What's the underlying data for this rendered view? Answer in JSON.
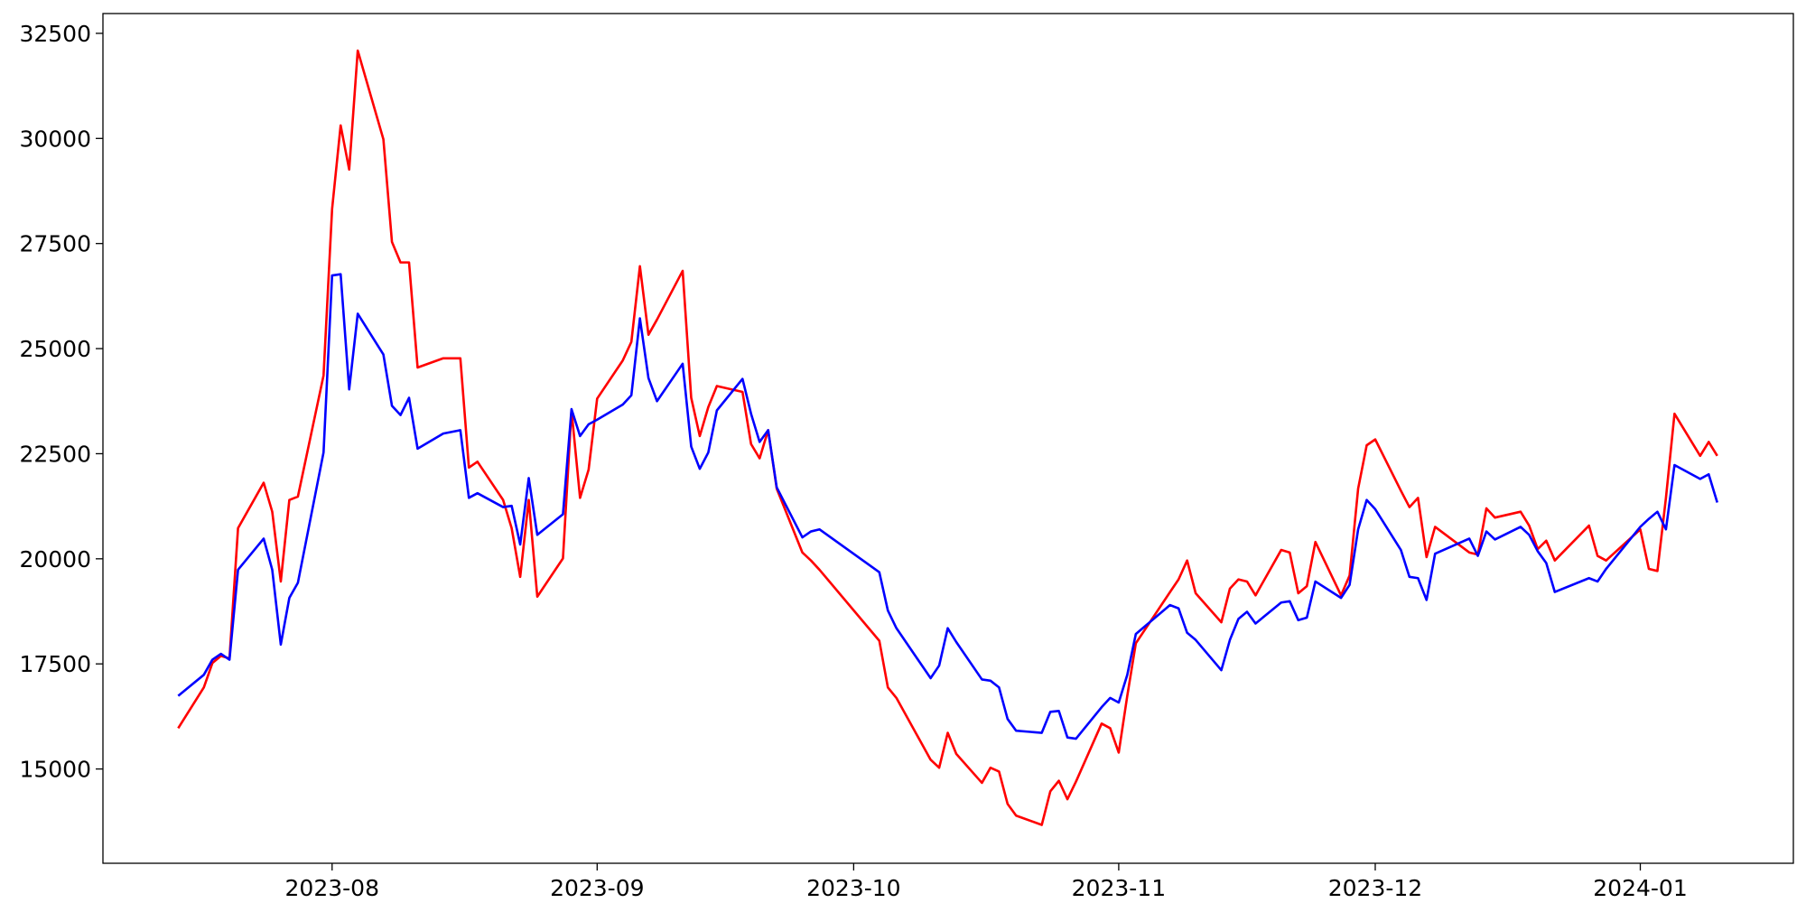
{
  "chart_data": {
    "type": "line",
    "x": [
      19552,
      19555,
      19556,
      19557,
      19558,
      19559,
      19562,
      19563,
      19564,
      19565,
      19566,
      19569,
      19570,
      19571,
      19572,
      19573,
      19576,
      19577,
      19578,
      19579,
      19580,
      19583,
      19585,
      19586,
      19587,
      19590,
      19591,
      19592,
      19593,
      19594,
      19597,
      19598,
      19599,
      19600,
      19601,
      19604,
      19605,
      19606,
      19607,
      19608,
      19611,
      19612,
      19613,
      19614,
      19615,
      19618,
      19619,
      19620,
      19621,
      19622,
      19625,
      19626,
      19627,
      19634,
      19635,
      19636,
      19640,
      19641,
      19642,
      19643,
      19646,
      19647,
      19648,
      19649,
      19650,
      19653,
      19654,
      19655,
      19656,
      19657,
      19660,
      19661,
      19662,
      19663,
      19664,
      19668,
      19669,
      19670,
      19671,
      19674,
      19675,
      19676,
      19677,
      19678,
      19681,
      19682,
      19683,
      19684,
      19685,
      19688,
      19689,
      19690,
      19691,
      19692,
      19695,
      19696,
      19697,
      19698,
      19699,
      19703,
      19704,
      19705,
      19706,
      19709,
      19710,
      19711,
      19712,
      19713,
      19717,
      19718,
      19719,
      19723,
      19724,
      19725,
      19726,
      19727,
      19730,
      19731,
      19732
    ],
    "series": [
      {
        "color": "red",
        "values": [
          15970,
          16940,
          17520,
          17690,
          17630,
          20730,
          21810,
          21120,
          19460,
          21400,
          21480,
          24360,
          28320,
          30310,
          29260,
          32090,
          29980,
          27540,
          27050,
          27050,
          24550,
          24770,
          24770,
          22170,
          22310,
          21400,
          20730,
          19570,
          21400,
          19100,
          20010,
          23530,
          21450,
          22120,
          23810,
          24720,
          25160,
          26960,
          25330,
          25690,
          26850,
          23830,
          22920,
          23610,
          24110,
          23970,
          22730,
          22390,
          23060,
          21670,
          20150,
          19960,
          19740,
          18050,
          16940,
          16690,
          15220,
          15030,
          15860,
          15360,
          14670,
          15030,
          14940,
          14170,
          13890,
          13670,
          14470,
          14720,
          14280,
          14700,
          16080,
          15970,
          15390,
          16740,
          17990,
          19210,
          19510,
          19960,
          19180,
          18490,
          19290,
          19510,
          19460,
          19130,
          20210,
          20150,
          19180,
          19350,
          20400,
          19130,
          19600,
          21670,
          22700,
          22840,
          21620,
          21230,
          21450,
          20040,
          20760,
          20150,
          20100,
          21200,
          20980,
          21120,
          20790,
          20230,
          20430,
          19960,
          20790,
          20070,
          19960,
          20700,
          19760,
          19710,
          21450,
          23450,
          22450,
          22780,
          22450
        ]
      },
      {
        "color": "blue",
        "values": [
          16740,
          17240,
          17600,
          17740,
          17600,
          19740,
          20480,
          19740,
          17960,
          19070,
          19430,
          22530,
          26740,
          26770,
          24030,
          25830,
          24860,
          23640,
          23420,
          23830,
          22620,
          22980,
          23060,
          21450,
          21560,
          21230,
          21260,
          20340,
          21920,
          20570,
          21060,
          23560,
          22920,
          23200,
          23310,
          23670,
          23890,
          25720,
          24300,
          23750,
          24640,
          22670,
          22140,
          22530,
          23530,
          24280,
          23450,
          22780,
          23060,
          21700,
          20510,
          20650,
          20700,
          19680,
          18770,
          18350,
          17160,
          17460,
          18350,
          18020,
          17130,
          17100,
          16940,
          16190,
          15910,
          15860,
          16360,
          16380,
          15750,
          15720,
          16470,
          16690,
          16580,
          17240,
          18210,
          18900,
          18820,
          18240,
          18070,
          17350,
          18070,
          18570,
          18740,
          18460,
          18960,
          18990,
          18540,
          18600,
          19460,
          19070,
          19380,
          20700,
          21400,
          21180,
          20210,
          19570,
          19540,
          19020,
          20120,
          20480,
          20070,
          20650,
          20460,
          20760,
          20570,
          20180,
          19900,
          19210,
          19540,
          19460,
          19760,
          20760,
          20950,
          21120,
          20700,
          22230,
          21900,
          22010,
          21340
        ]
      }
    ],
    "xlim": [
      19543.2,
      19740.9
    ],
    "xticks": [
      {
        "value": 19570,
        "label": "2023-08"
      },
      {
        "value": 19601,
        "label": "2023-09"
      },
      {
        "value": 19631,
        "label": "2023-10"
      },
      {
        "value": 19662,
        "label": "2023-11"
      },
      {
        "value": 19692,
        "label": "2023-12"
      },
      {
        "value": 19723,
        "label": "2024-01"
      }
    ],
    "ylim": [
      12757,
      32971
    ],
    "yticks": [
      15000,
      17500,
      20000,
      22500,
      25000,
      27500,
      30000,
      32500
    ],
    "grid": false
  }
}
